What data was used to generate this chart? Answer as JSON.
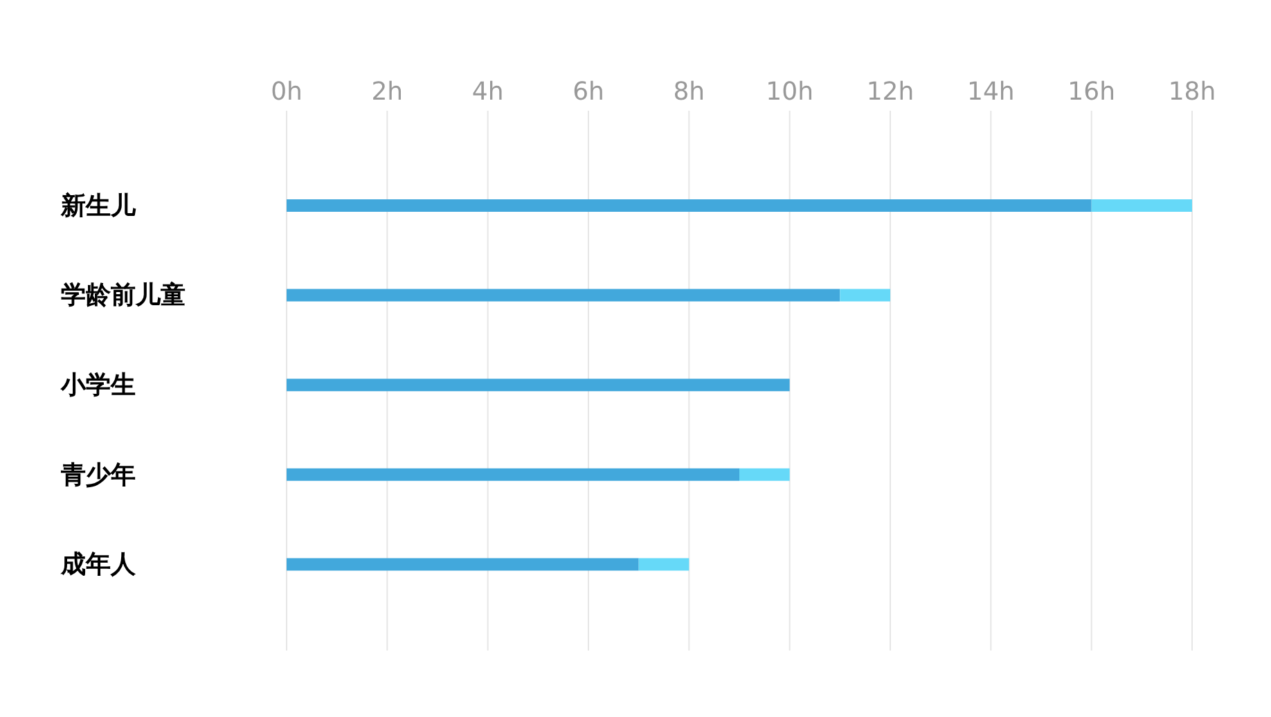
{
  "chart_data": {
    "type": "bar",
    "orientation": "horizontal",
    "stacked": true,
    "categories": [
      "新生儿",
      "学龄前儿童",
      "小学生",
      "青少年",
      "成年人"
    ],
    "series": [
      {
        "color": "#42a8dc",
        "values": [
          16,
          11,
          10,
          9,
          7
        ]
      },
      {
        "color": "#66d9f8",
        "values": [
          2,
          1,
          0,
          1,
          1
        ]
      }
    ],
    "xlim": [
      0,
      18
    ],
    "xticks": [
      {
        "value": 0,
        "label": "0h"
      },
      {
        "value": 2,
        "label": "2h"
      },
      {
        "value": 4,
        "label": "4h"
      },
      {
        "value": 6,
        "label": "6h"
      },
      {
        "value": 8,
        "label": "8h"
      },
      {
        "value": 10,
        "label": "10h"
      },
      {
        "value": 12,
        "label": "12h"
      },
      {
        "value": 14,
        "label": "14h"
      },
      {
        "value": 16,
        "label": "16h"
      },
      {
        "value": 18,
        "label": "18h"
      }
    ],
    "grid": "x"
  }
}
